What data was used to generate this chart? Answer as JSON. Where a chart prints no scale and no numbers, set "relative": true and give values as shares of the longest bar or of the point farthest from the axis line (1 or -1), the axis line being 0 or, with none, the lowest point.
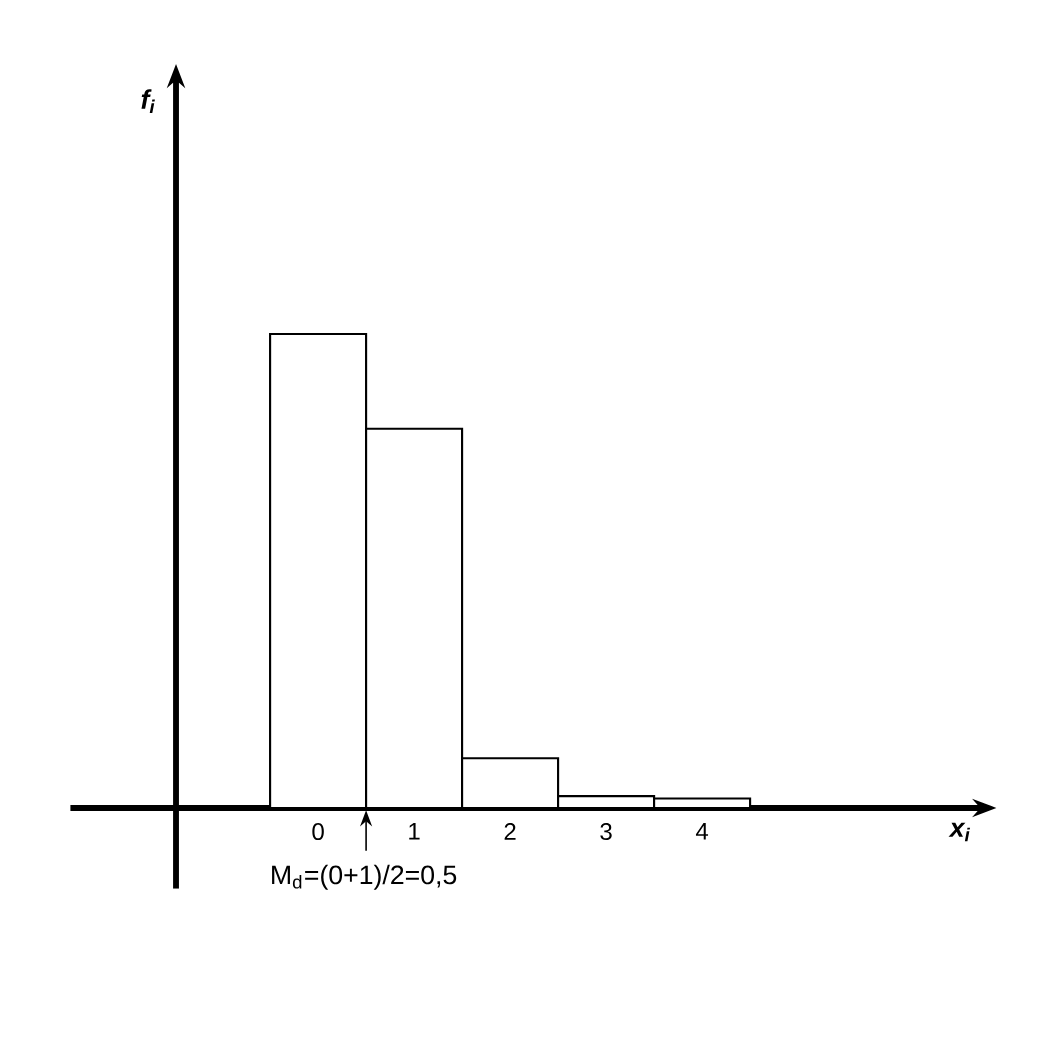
{
  "chart_data": {
    "type": "bar",
    "relative": true,
    "categories": [
      "0",
      "1",
      "2",
      "3",
      "4"
    ],
    "values": [
      1,
      0.8,
      0.105,
      0.025,
      0.02
    ],
    "color": "#ffffff",
    "annotations": [
      "M$_{d}$=(0+1)/2=0,5",
      "x$_{i}$",
      "f$_{i}$"
    ]
  }
}
